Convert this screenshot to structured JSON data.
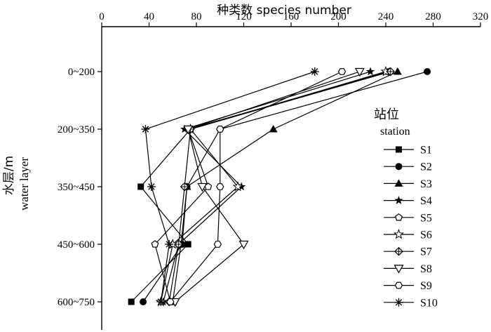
{
  "chart_data": {
    "type": "line",
    "title": "",
    "xlabel": "种类数 species number",
    "ylabel_cn": "水层/m",
    "ylabel_en": "water layer",
    "xlim": [
      0,
      320
    ],
    "x_ticks": [
      0,
      40,
      80,
      120,
      160,
      200,
      240,
      280,
      320
    ],
    "x_axis_position": "top",
    "categories": [
      "0~200",
      "200~350",
      "350~450",
      "450~600",
      "600~750"
    ],
    "legend": {
      "title_cn": "站位",
      "title_en": "station",
      "placement": "right"
    },
    "grid": false,
    "series": [
      {
        "name": "S1",
        "marker": "square-filled",
        "values": [
          242,
          75,
          33,
          73,
          25
        ]
      },
      {
        "name": "S2",
        "marker": "circle-filled",
        "values": [
          275,
          100,
          72,
          68,
          35
        ]
      },
      {
        "name": "S3",
        "marker": "triangle-filled",
        "values": [
          250,
          145,
          72,
          67,
          60
        ]
      },
      {
        "name": "S4",
        "marker": "star-filled",
        "values": [
          227,
          70,
          118,
          65,
          52
        ]
      },
      {
        "name": "S5",
        "marker": "pentagon-open",
        "values": [
          243,
          73,
          90,
          45,
          58
        ]
      },
      {
        "name": "S6",
        "marker": "star-open",
        "values": [
          240,
          75,
          115,
          60,
          50
        ]
      },
      {
        "name": "S7",
        "marker": "diamond-cross",
        "values": [
          244,
          75,
          70,
          65,
          57
        ]
      },
      {
        "name": "S8",
        "marker": "triangle-down-open",
        "values": [
          218,
          73,
          85,
          120,
          62
        ]
      },
      {
        "name": "S9",
        "marker": "hexagon-open",
        "values": [
          203,
          100,
          100,
          98,
          58
        ]
      },
      {
        "name": "S10",
        "marker": "asterisk",
        "values": [
          180,
          37,
          42,
          57,
          50
        ]
      }
    ]
  }
}
